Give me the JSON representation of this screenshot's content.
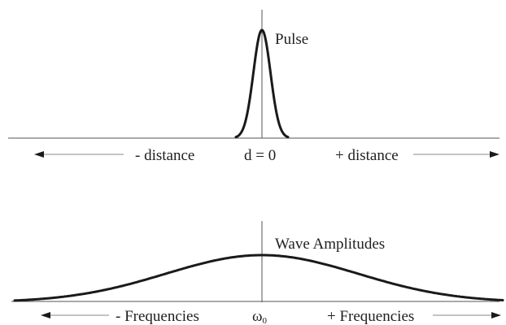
{
  "top_panel": {
    "curve_label": "Pulse",
    "left_label": "- distance",
    "center_label": "d = 0",
    "right_label": "+ distance"
  },
  "bottom_panel": {
    "curve_label": "Wave Amplitudes",
    "left_label": "- Frequencies",
    "center_label": "ω",
    "center_subscript": "0",
    "right_label": "+ Frequencies"
  },
  "colors": {
    "curve": "#1a1a1a",
    "axis": "#555555",
    "arrow_line": "#888888"
  }
}
